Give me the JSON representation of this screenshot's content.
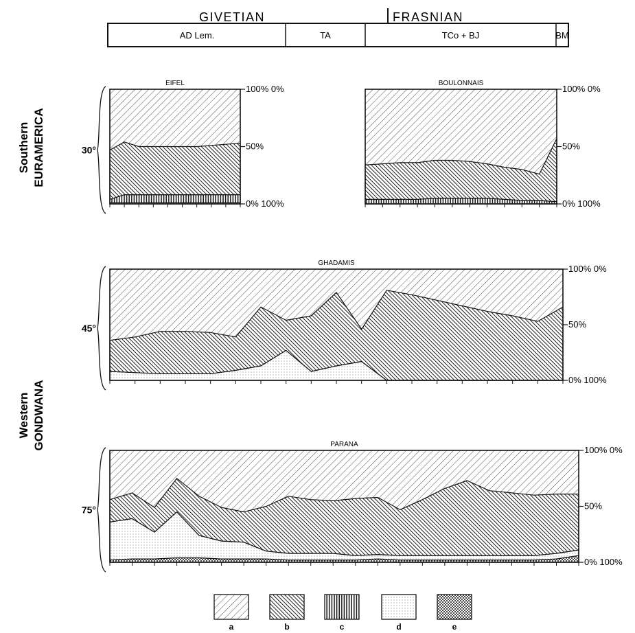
{
  "header": {
    "stages": [
      "GIVETIAN",
      "FRASNIAN"
    ],
    "zones": [
      "AD Lem.",
      "TA",
      "TCo + BJ",
      "BM"
    ]
  },
  "regions": [
    {
      "label_line1": "Southern",
      "label_line2": "EURAMERICA"
    },
    {
      "label_line1": "Western",
      "label_line2": "GONDWANA"
    }
  ],
  "axis_labels": {
    "top_right": "100% 0%",
    "mid_right": "50%",
    "bottom_right": "0% 100%"
  },
  "legend": {
    "items": [
      "a",
      "b",
      "c",
      "d",
      "e"
    ]
  },
  "colors": {
    "ink": "#1a1a1a",
    "background": "#ffffff"
  },
  "chart_data": [
    {
      "type": "area",
      "title": "EIFEL",
      "latitude": "30°",
      "stacked": true,
      "ylim": [
        0,
        100
      ],
      "series": [
        {
          "name": "e",
          "values": [
            1,
            1,
            1,
            1,
            1,
            1,
            1,
            1,
            1,
            1
          ]
        },
        {
          "name": "c",
          "values": [
            3,
            7,
            7,
            7,
            7,
            7,
            7,
            7,
            7,
            7
          ]
        },
        {
          "name": "b",
          "values": [
            43,
            46,
            42,
            42,
            42,
            42,
            42,
            43,
            44,
            45
          ]
        }
      ]
    },
    {
      "type": "area",
      "title": "BOULONNAIS",
      "latitude": "30°",
      "stacked": true,
      "ylim": [
        0,
        100
      ],
      "series": [
        {
          "name": "c",
          "values": [
            4,
            4,
            4,
            4,
            5,
            5,
            5,
            5,
            4,
            3,
            3,
            2
          ]
        },
        {
          "name": "b",
          "values": [
            30,
            31,
            32,
            32,
            33,
            33,
            32,
            30,
            28,
            27,
            23,
            55
          ]
        }
      ]
    },
    {
      "type": "area",
      "title": "GHADAMIS",
      "latitude": "45°",
      "stacked": true,
      "ylim": [
        0,
        100
      ],
      "series": [
        {
          "name": "d",
          "values": [
            8,
            7,
            6,
            6,
            6,
            9,
            13,
            27,
            8,
            13,
            17,
            0,
            0,
            0,
            0,
            0,
            0,
            0,
            0
          ]
        },
        {
          "name": "b",
          "values": [
            28,
            32,
            38,
            38,
            37,
            30,
            53,
            27,
            50,
            66,
            29,
            81,
            77,
            72,
            67,
            62,
            58,
            53,
            66
          ]
        }
      ]
    },
    {
      "type": "area",
      "title": "PARANA",
      "latitude": "75°",
      "stacked": true,
      "ylim": [
        0,
        100
      ],
      "series": [
        {
          "name": "e",
          "values": [
            2,
            3,
            3,
            4,
            4,
            3,
            3,
            3,
            2,
            2,
            2,
            2,
            3,
            2,
            2,
            2,
            2,
            2,
            2,
            2,
            3,
            6
          ]
        },
        {
          "name": "d",
          "values": [
            34,
            36,
            24,
            41,
            20,
            16,
            15,
            7,
            6,
            6,
            6,
            4,
            4,
            4,
            4,
            4,
            4,
            4,
            4,
            4,
            5,
            5
          ]
        },
        {
          "name": "b",
          "values": [
            20,
            23,
            22,
            30,
            35,
            30,
            27,
            40,
            51,
            48,
            47,
            51,
            51,
            41,
            50,
            60,
            67,
            58,
            56,
            54,
            53,
            50
          ]
        }
      ]
    }
  ]
}
